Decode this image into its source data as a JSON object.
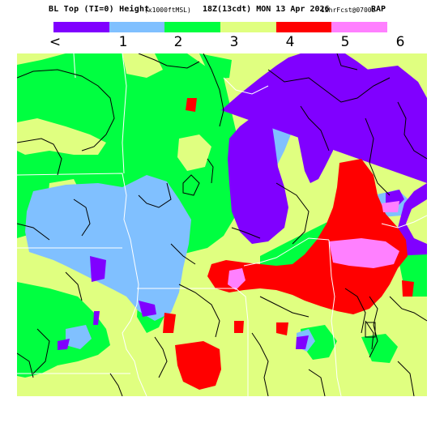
{
  "header": {
    "title": "BL Top (TI=0) Height",
    "units": "(x1000ftMSL)",
    "valid_time": "18Z(13cdt) MON 13 Apr 2026",
    "forecast": "12hrFcst@0700z",
    "model": "RAP"
  },
  "legend": {
    "bins": [
      {
        "label": "<",
        "color": "#8000ff"
      },
      {
        "label": "1",
        "color": "#80c0ff"
      },
      {
        "label": "2",
        "color": "#00ff40"
      },
      {
        "label": "3",
        "color": "#e0ff80"
      },
      {
        "label": "4",
        "color": "#ff0000"
      },
      {
        "label": "5",
        "color": "#ff80ff"
      },
      {
        "label": "6",
        "color": ""
      }
    ]
  },
  "colors": {
    "purple": "#8000ff",
    "light_blue": "#80c0ff",
    "green": "#00ff40",
    "yellow": "#e0ff80",
    "red": "#ff0000",
    "pink": "#ff80ff",
    "background": "#ffffff"
  }
}
